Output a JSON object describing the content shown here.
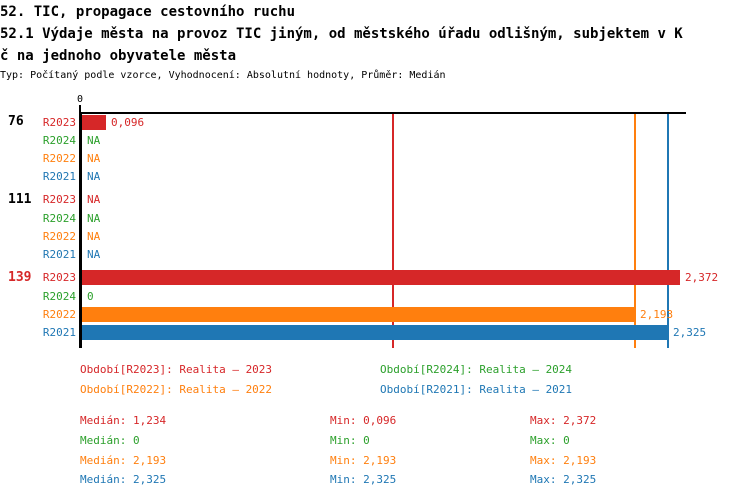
{
  "header": {
    "title_line1": "52. TIC, propagace cestovního ruchu",
    "title_line2": "52.1 Výdaje města na provoz TIC jiným, od městského úřadu odlišným, subjektem v K",
    "title_line3": "č na jednoho obyvatele města",
    "meta": "Typ: Počítaný podle vzorce, Vyhodnocení: Absolutní hodnoty, Průměr: Medián"
  },
  "colors": {
    "r2023": "#d62728",
    "r2024": "#2ca02c",
    "r2022": "#ff7f0e",
    "r2021": "#1f77b4",
    "axis": "#000000",
    "group_highlight": "#d62728",
    "group_normal": "#000000"
  },
  "chart_data": {
    "type": "bar",
    "orientation": "horizontal",
    "title": "52.1 Výdaje města na provoz TIC jiným, od městského úřadu odlišným, subjektem v Kč na jednoho obyvatele města",
    "xlim": [
      0,
      2.4
    ],
    "zero_tick_label": "0",
    "grid": false,
    "na_label": "NA",
    "groups": [
      {
        "label": "76",
        "label_color_key": "group_normal",
        "rows": [
          {
            "series": "R2023",
            "color_key": "r2023",
            "value": 0.096,
            "value_label": "0,096"
          },
          {
            "series": "R2024",
            "color_key": "r2024",
            "value": null,
            "value_label": "NA"
          },
          {
            "series": "R2022",
            "color_key": "r2022",
            "value": null,
            "value_label": "NA"
          },
          {
            "series": "R2021",
            "color_key": "r2021",
            "value": null,
            "value_label": "NA"
          }
        ]
      },
      {
        "label": "111",
        "label_color_key": "group_normal",
        "rows": [
          {
            "series": "R2023",
            "color_key": "r2023",
            "value": null,
            "value_label": "NA"
          },
          {
            "series": "R2024",
            "color_key": "r2024",
            "value": null,
            "value_label": "NA"
          },
          {
            "series": "R2022",
            "color_key": "r2022",
            "value": null,
            "value_label": "NA"
          },
          {
            "series": "R2021",
            "color_key": "r2021",
            "value": null,
            "value_label": "NA"
          }
        ]
      },
      {
        "label": "139",
        "label_color_key": "group_highlight",
        "rows": [
          {
            "series": "R2023",
            "color_key": "r2023",
            "value": 2.372,
            "value_label": "2,372"
          },
          {
            "series": "R2024",
            "color_key": "r2024",
            "value": 0,
            "value_label": "0"
          },
          {
            "series": "R2022",
            "color_key": "r2022",
            "value": 2.193,
            "value_label": "2,193"
          },
          {
            "series": "R2021",
            "color_key": "r2021",
            "value": 2.325,
            "value_label": "2,325"
          }
        ]
      }
    ],
    "median_lines": [
      {
        "color_key": "r2023",
        "value": 1.234
      },
      {
        "color_key": "r2024",
        "value": 0
      },
      {
        "color_key": "r2022",
        "value": 2.193
      },
      {
        "color_key": "r2021",
        "value": 2.325
      }
    ],
    "legend": [
      {
        "text": "Období[R2023]: Realita – 2023",
        "color_key": "r2023"
      },
      {
        "text": "Období[R2024]: Realita – 2024",
        "color_key": "r2024"
      },
      {
        "text": "Období[R2022]: Realita – 2022",
        "color_key": "r2022"
      },
      {
        "text": "Období[R2021]: Realita – 2021",
        "color_key": "r2021"
      }
    ],
    "stats": {
      "labels": {
        "median": "Medián",
        "min": "Min",
        "max": "Max"
      },
      "rows": [
        {
          "color_key": "r2023",
          "median": "1,234",
          "min": "0,096",
          "max": "2,372"
        },
        {
          "color_key": "r2024",
          "median": "0",
          "min": "0",
          "max": "0"
        },
        {
          "color_key": "r2022",
          "median": "2,193",
          "min": "2,193",
          "max": "2,193"
        },
        {
          "color_key": "r2021",
          "median": "2,325",
          "min": "2,325",
          "max": "2,325"
        }
      ]
    }
  }
}
